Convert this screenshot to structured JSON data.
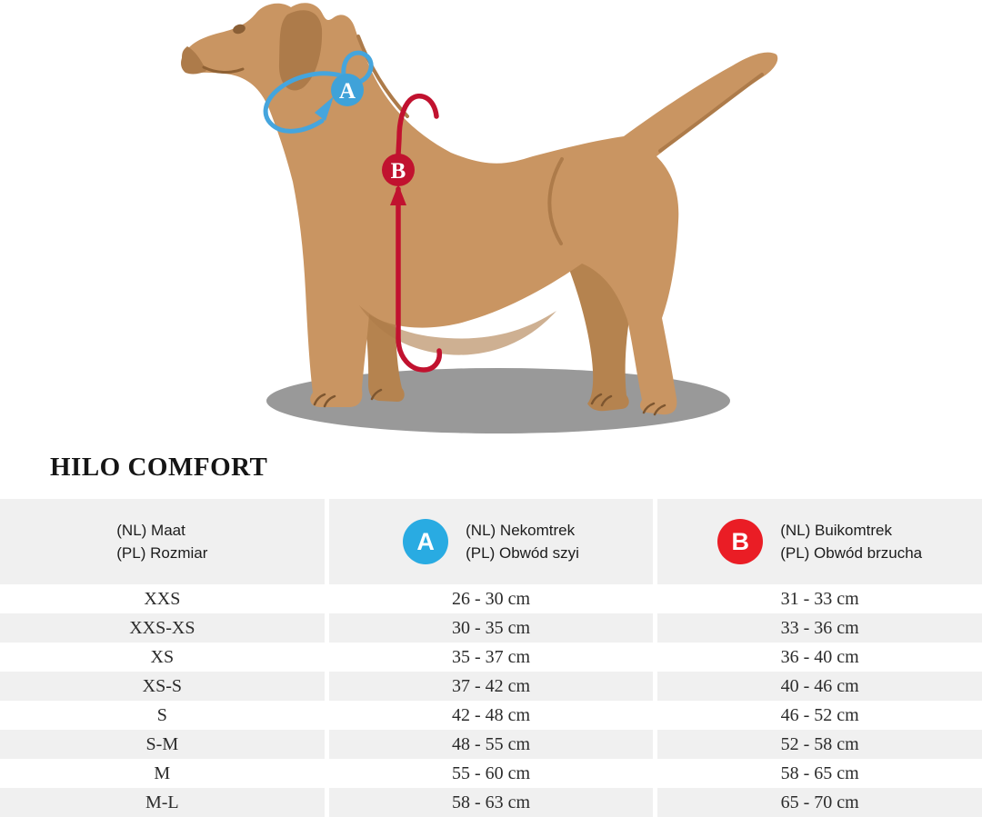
{
  "page": {
    "title": "HILO COMFORT"
  },
  "illustration": {
    "subject": "dog-side-view-measurement-diagram",
    "marker_a": "A",
    "marker_b": "B",
    "colors": {
      "dog_body": "#c99562",
      "dog_shade": "#ad7b4a",
      "dog_far_limb": "#b5834f",
      "shadow": "#999999",
      "neck_marker_blue": "#3fa2d9",
      "neck_arrow_blue": "#45a5dd",
      "girth_marker_red": "#c1122f",
      "header_badge_blue": "#29abe2",
      "header_badge_red": "#ea1d25",
      "stripe_gray": "#f0f0f0"
    }
  },
  "table": {
    "header": {
      "size": {
        "line1": "(NL) Maat",
        "line2": "(PL) Rozmiar"
      },
      "neck": {
        "badge": "A",
        "line1": "(NL) Nekomtrek",
        "line2": "(PL) Obwód szyi"
      },
      "belly": {
        "badge": "B",
        "line1": "(NL) Buikomtrek",
        "line2": "(PL) Obwód brzucha"
      }
    },
    "rows": [
      {
        "size": "XXS",
        "neck": "26 - 30 cm",
        "belly": "31 - 33 cm"
      },
      {
        "size": "XXS-XS",
        "neck": "30 - 35 cm",
        "belly": "33 - 36 cm"
      },
      {
        "size": "XS",
        "neck": "35 - 37 cm",
        "belly": "36 - 40 cm"
      },
      {
        "size": "XS-S",
        "neck": "37 - 42 cm",
        "belly": "40 - 46 cm"
      },
      {
        "size": "S",
        "neck": "42 - 48 cm",
        "belly": "46 - 52 cm"
      },
      {
        "size": "S-M",
        "neck": "48 - 55 cm",
        "belly": "52 - 58 cm"
      },
      {
        "size": "M",
        "neck": "55 - 60 cm",
        "belly": "58 - 65 cm"
      },
      {
        "size": "M-L",
        "neck": "58 - 63 cm",
        "belly": "65 - 70 cm"
      }
    ]
  }
}
